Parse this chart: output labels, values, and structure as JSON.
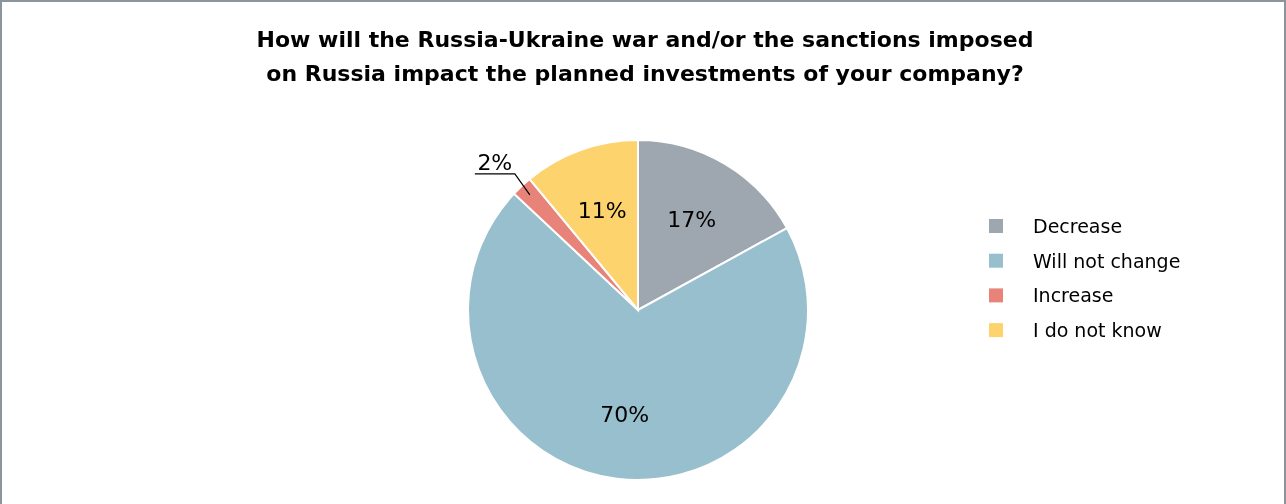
{
  "chart_data": {
    "type": "pie",
    "title": "How will the Russia-Ukraine war and/or the sanctions imposed\non Russia impact the planned investments of your company?",
    "categories": [
      "Decrease",
      "Will not change",
      "Increase",
      "I do not know"
    ],
    "values": [
      17,
      70,
      2,
      11
    ],
    "colors": [
      "#9ea7b0",
      "#98bfcd",
      "#e8837a",
      "#fdd36e"
    ],
    "value_labels": [
      "17%",
      "70%",
      "2%",
      "11%"
    ],
    "legend": "right"
  }
}
